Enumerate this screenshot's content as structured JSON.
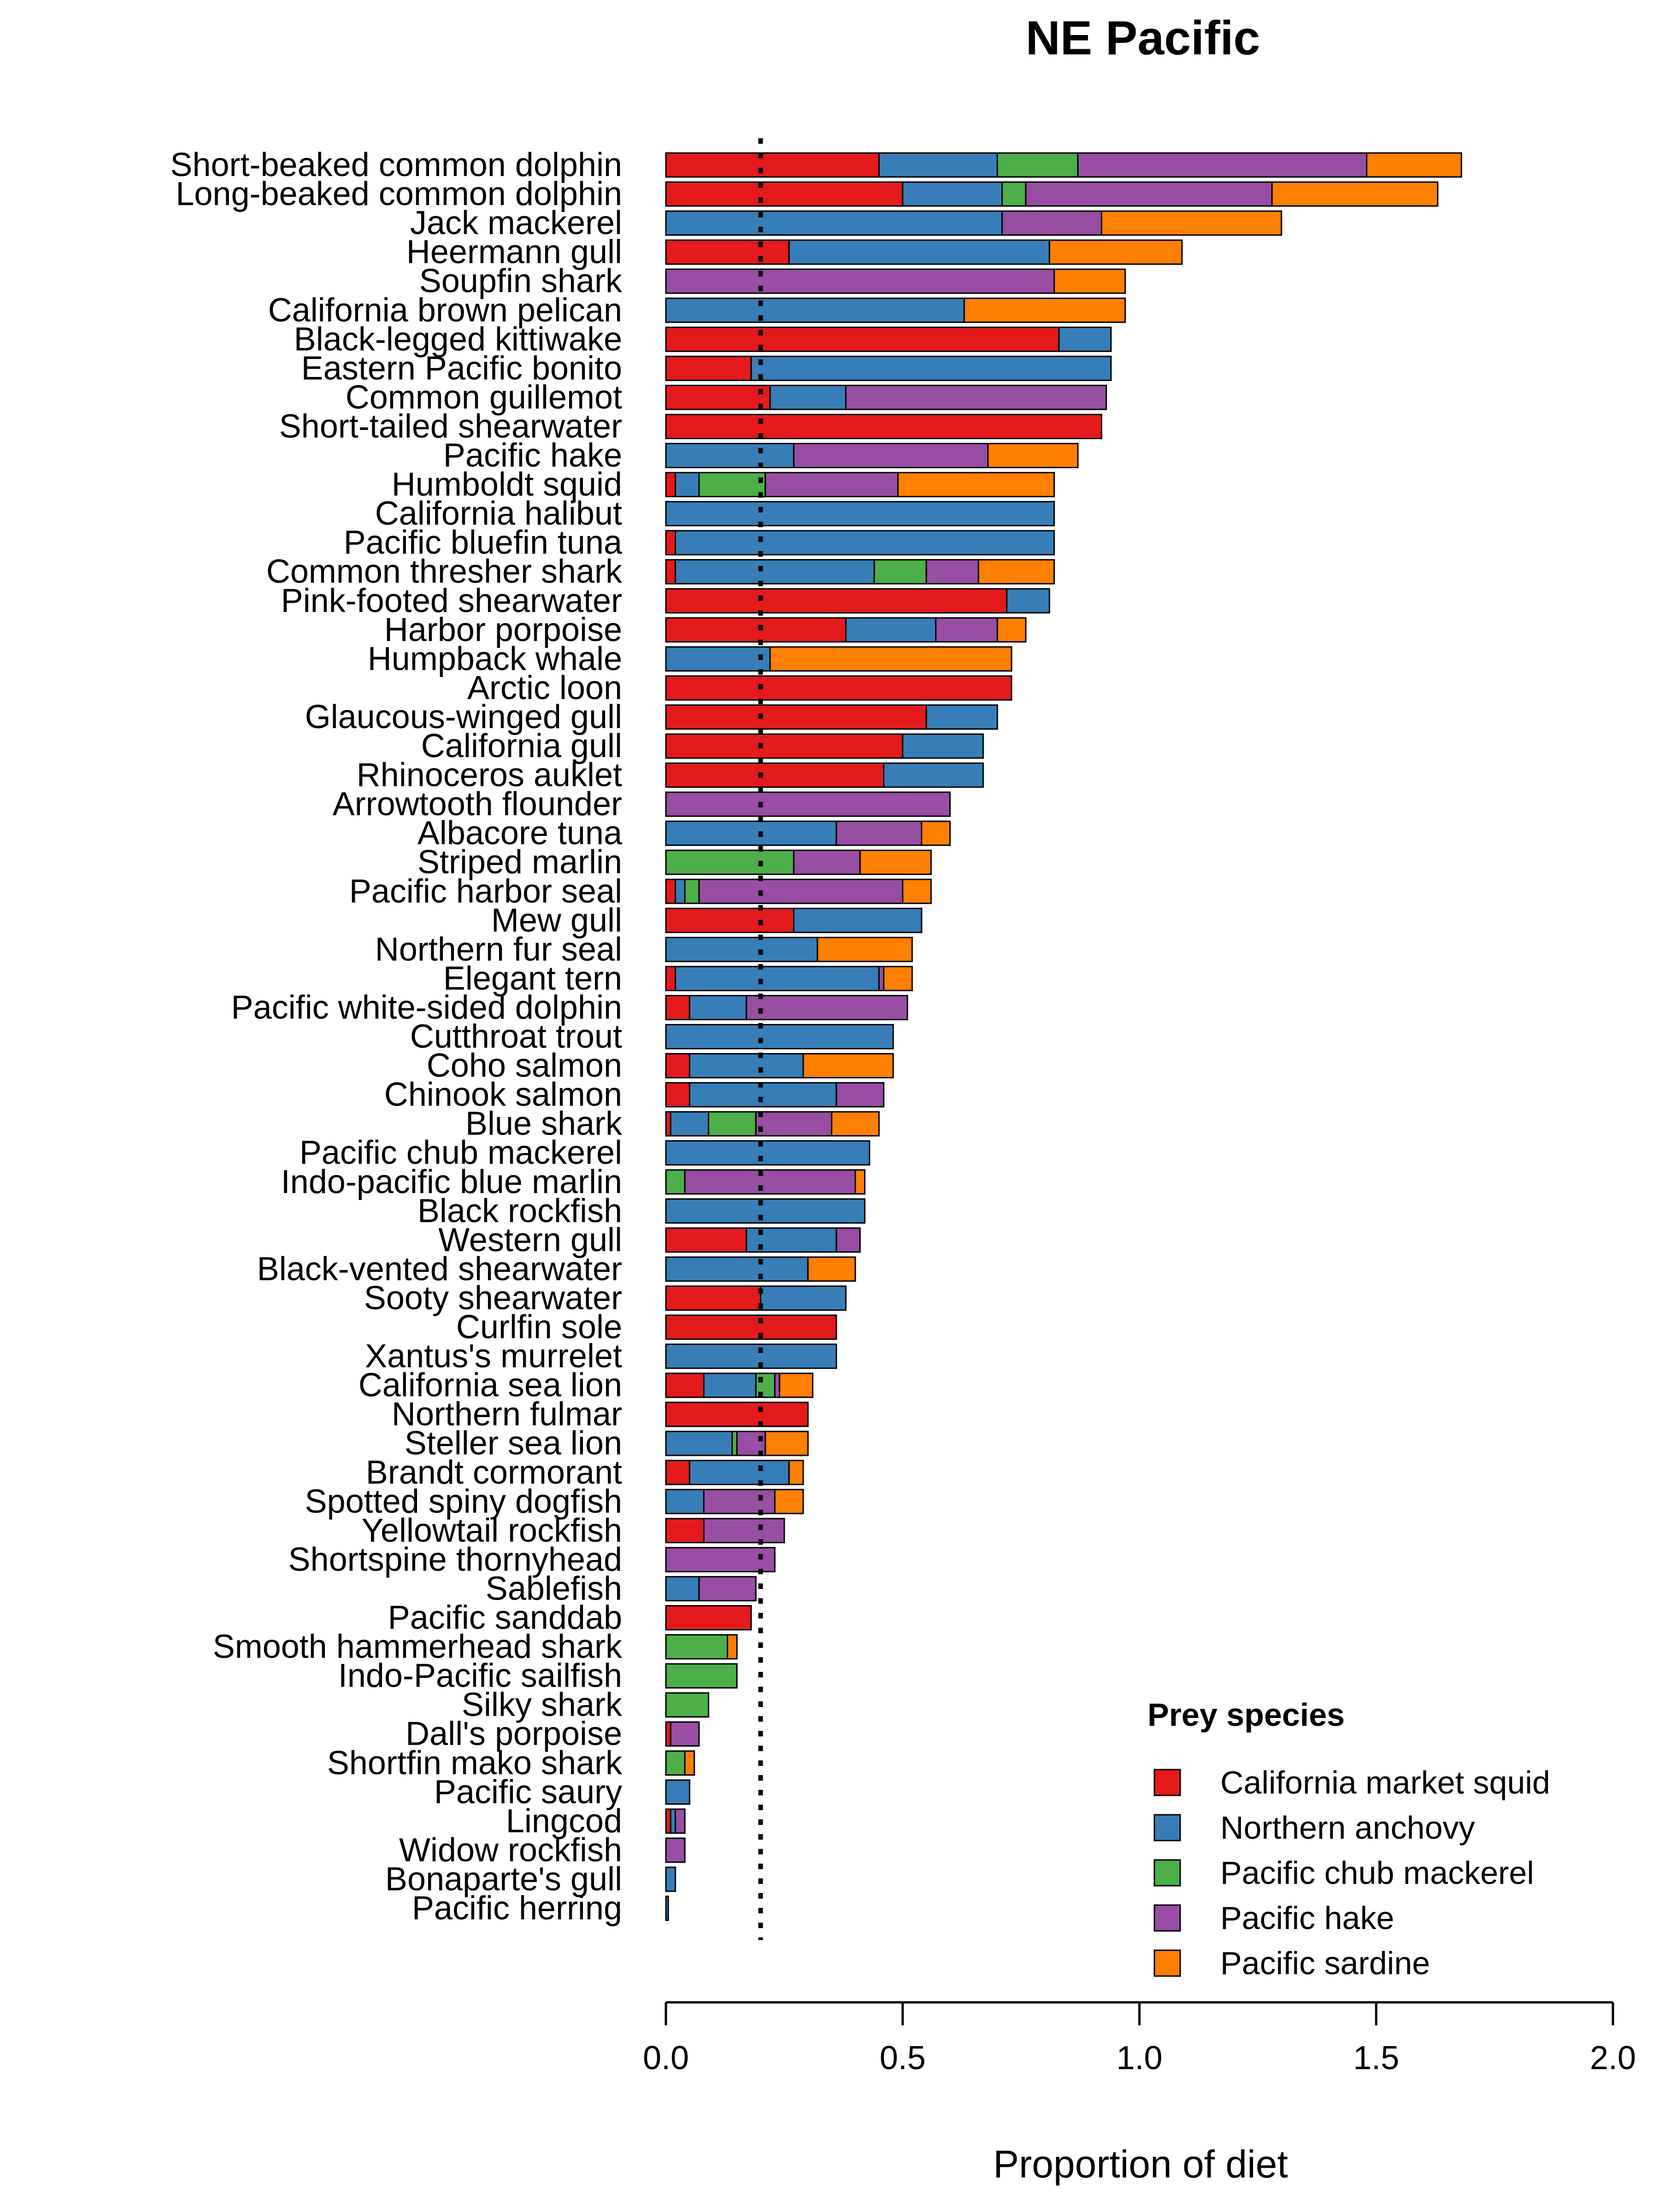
{
  "chart_data": {
    "type": "bar",
    "orientation": "horizontal",
    "stacked": true,
    "title": "NE Pacific",
    "xlabel": "Proportion of diet",
    "ylabel": "",
    "xlim": [
      0,
      2
    ],
    "xticks": [
      "0.0",
      "0.5",
      "1.0",
      "1.5",
      "2.0"
    ],
    "reference_line": {
      "x": 0.2,
      "style": "dotted"
    },
    "legend": {
      "title": "Prey species",
      "placement": "bottom-right"
    },
    "series": [
      {
        "name": "California market squid",
        "color": "#e41a1c"
      },
      {
        "name": "Northern anchovy",
        "color": "#377eb8"
      },
      {
        "name": "Pacific chub mackerel",
        "color": "#4daf4a"
      },
      {
        "name": "Pacific hake",
        "color": "#984ea3"
      },
      {
        "name": "Pacific sardine",
        "color": "#ff7f00"
      }
    ],
    "categories": [
      "Short-beaked common dolphin",
      "Long-beaked common dolphin",
      "Jack mackerel",
      "Heermann gull",
      "Soupfin shark",
      "California brown pelican",
      "Black-legged kittiwake",
      "Eastern Pacific bonito",
      "Common guillemot",
      "Short-tailed shearwater",
      "Pacific hake",
      "Humboldt squid",
      "California halibut",
      "Pacific bluefin tuna",
      "Common thresher shark",
      "Pink-footed shearwater",
      "Harbor porpoise",
      "Humpback whale",
      "Arctic loon",
      "Glaucous-winged gull",
      "California gull",
      "Rhinoceros auklet",
      "Arrowtooth flounder",
      "Albacore tuna",
      "Striped marlin",
      "Pacific harbor seal",
      "Mew gull",
      "Northern fur seal",
      "Elegant tern",
      "Pacific white-sided dolphin",
      "Cutthroat trout",
      "Coho salmon",
      "Chinook salmon",
      "Blue shark",
      "Pacific chub mackerel",
      "Indo-pacific blue marlin",
      "Black rockfish",
      "Western gull",
      "Black-vented shearwater",
      "Sooty shearwater",
      "Curlfin sole",
      "Xantus's murrelet",
      "California sea lion",
      "Northern fulmar",
      "Steller sea lion",
      "Brandt cormorant",
      "Spotted spiny dogfish",
      "Yellowtail rockfish",
      "Shortspine thornyhead",
      "Sablefish",
      "Pacific sanddab",
      "Smooth hammerhead shark",
      "Indo-Pacific sailfish",
      "Silky shark",
      "Dall's porpoise",
      "Shortfin mako shark",
      "Pacific saury",
      "Lingcod",
      "Widow rockfish",
      "Bonaparte's gull",
      "Pacific herring"
    ],
    "values": [
      [
        0.45,
        0.25,
        0.17,
        0.61,
        0.2
      ],
      [
        0.5,
        0.21,
        0.05,
        0.52,
        0.35
      ],
      [
        0.0,
        0.71,
        0.0,
        0.21,
        0.38
      ],
      [
        0.26,
        0.55,
        0.0,
        0.0,
        0.28
      ],
      [
        0.0,
        0.0,
        0.0,
        0.82,
        0.15
      ],
      [
        0.0,
        0.63,
        0.0,
        0.0,
        0.34
      ],
      [
        0.83,
        0.11,
        0.0,
        0.0,
        0.0
      ],
      [
        0.18,
        0.76,
        0.0,
        0.0,
        0.0
      ],
      [
        0.22,
        0.16,
        0.0,
        0.55,
        0.0
      ],
      [
        0.92,
        0.0,
        0.0,
        0.0,
        0.0
      ],
      [
        0.0,
        0.27,
        0.0,
        0.41,
        0.19
      ],
      [
        0.02,
        0.05,
        0.14,
        0.28,
        0.33
      ],
      [
        0.0,
        0.82,
        0.0,
        0.0,
        0.0
      ],
      [
        0.02,
        0.8,
        0.0,
        0.0,
        0.0
      ],
      [
        0.02,
        0.42,
        0.11,
        0.11,
        0.16
      ],
      [
        0.72,
        0.09,
        0.0,
        0.0,
        0.0
      ],
      [
        0.38,
        0.19,
        0.0,
        0.13,
        0.06
      ],
      [
        0.0,
        0.22,
        0.0,
        0.0,
        0.51
      ],
      [
        0.73,
        0.0,
        0.0,
        0.0,
        0.0
      ],
      [
        0.55,
        0.15,
        0.0,
        0.0,
        0.0
      ],
      [
        0.5,
        0.17,
        0.0,
        0.0,
        0.0
      ],
      [
        0.46,
        0.21,
        0.0,
        0.0,
        0.0
      ],
      [
        0.0,
        0.0,
        0.0,
        0.6,
        0.0
      ],
      [
        0.0,
        0.36,
        0.0,
        0.18,
        0.06
      ],
      [
        0.0,
        0.0,
        0.27,
        0.14,
        0.15
      ],
      [
        0.02,
        0.02,
        0.03,
        0.43,
        0.06
      ],
      [
        0.27,
        0.27,
        0.0,
        0.0,
        0.0
      ],
      [
        0.0,
        0.32,
        0.0,
        0.0,
        0.2
      ],
      [
        0.02,
        0.43,
        0.0,
        0.01,
        0.06
      ],
      [
        0.05,
        0.12,
        0.0,
        0.34,
        0.0
      ],
      [
        0.0,
        0.48,
        0.0,
        0.0,
        0.0
      ],
      [
        0.05,
        0.24,
        0.0,
        0.0,
        0.19
      ],
      [
        0.05,
        0.31,
        0.0,
        0.1,
        0.0
      ],
      [
        0.01,
        0.08,
        0.1,
        0.16,
        0.1
      ],
      [
        0.0,
        0.43,
        0.0,
        0.0,
        0.0
      ],
      [
        0.0,
        0.0,
        0.04,
        0.36,
        0.02
      ],
      [
        0.0,
        0.42,
        0.0,
        0.0,
        0.0
      ],
      [
        0.17,
        0.19,
        0.0,
        0.05,
        0.0
      ],
      [
        0.0,
        0.3,
        0.0,
        0.0,
        0.1
      ],
      [
        0.2,
        0.18,
        0.0,
        0.0,
        0.0
      ],
      [
        0.36,
        0.0,
        0.0,
        0.0,
        0.0
      ],
      [
        0.0,
        0.36,
        0.0,
        0.0,
        0.0
      ],
      [
        0.08,
        0.11,
        0.04,
        0.01,
        0.07
      ],
      [
        0.3,
        0.0,
        0.0,
        0.0,
        0.0
      ],
      [
        0.0,
        0.14,
        0.01,
        0.06,
        0.09
      ],
      [
        0.05,
        0.21,
        0.0,
        0.0,
        0.03
      ],
      [
        0.0,
        0.08,
        0.0,
        0.15,
        0.06
      ],
      [
        0.08,
        0.0,
        0.0,
        0.17,
        0.0
      ],
      [
        0.0,
        0.0,
        0.0,
        0.23,
        0.0
      ],
      [
        0.0,
        0.07,
        0.0,
        0.12,
        0.0
      ],
      [
        0.18,
        0.0,
        0.0,
        0.0,
        0.0
      ],
      [
        0.0,
        0.0,
        0.13,
        0.0,
        0.02
      ],
      [
        0.0,
        0.0,
        0.15,
        0.0,
        0.0
      ],
      [
        0.0,
        0.0,
        0.09,
        0.0,
        0.0
      ],
      [
        0.01,
        0.0,
        0.0,
        0.06,
        0.0
      ],
      [
        0.0,
        0.0,
        0.04,
        0.0,
        0.02
      ],
      [
        0.0,
        0.05,
        0.0,
        0.0,
        0.0
      ],
      [
        0.01,
        0.01,
        0.0,
        0.02,
        0.0
      ],
      [
        0.0,
        0.0,
        0.0,
        0.04,
        0.0
      ],
      [
        0.0,
        0.02,
        0.0,
        0.0,
        0.0
      ],
      [
        0.0,
        0.005,
        0.0,
        0.0,
        0.0
      ]
    ]
  }
}
